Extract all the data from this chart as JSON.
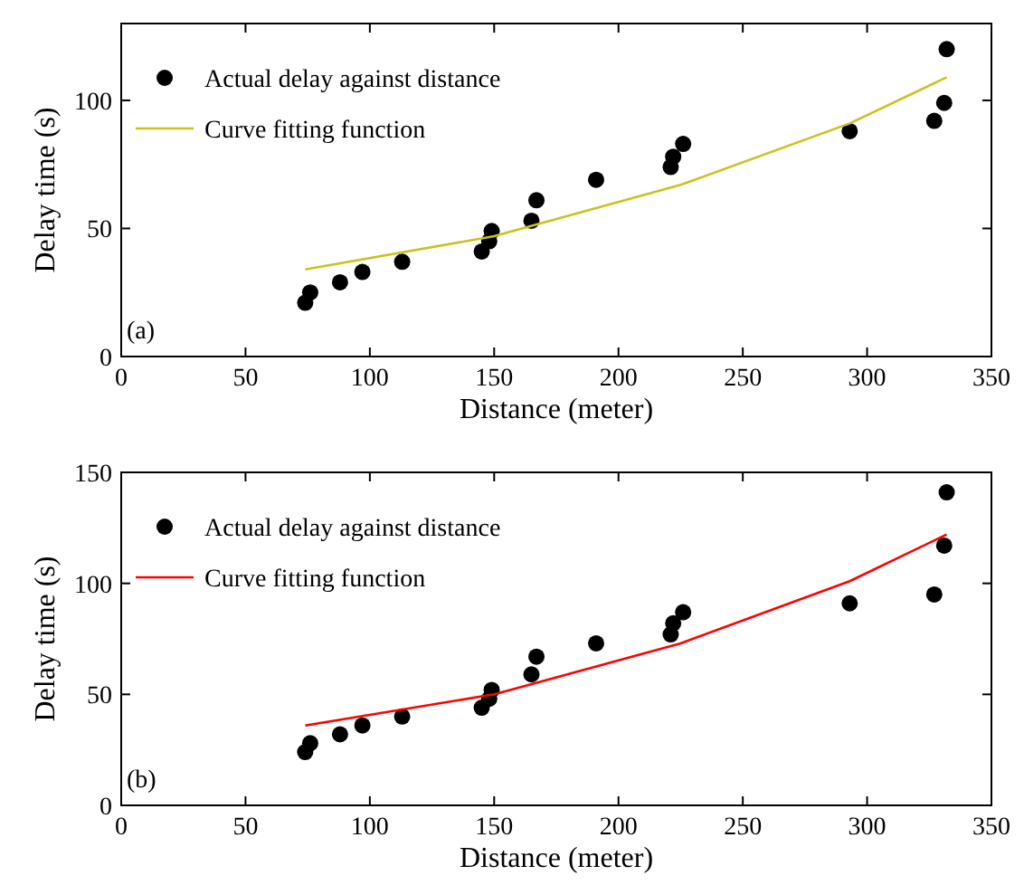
{
  "chart_data": [
    {
      "type": "scatter",
      "xlabel": "Distance (meter)",
      "ylabel": "Delay time (s)",
      "annotations": [
        "(a)"
      ],
      "xlim": [
        0,
        350
      ],
      "xticks": [
        0,
        50,
        100,
        150,
        200,
        250,
        300,
        350
      ],
      "ylim": [
        0,
        130
      ],
      "yticks": [
        0,
        50,
        100
      ],
      "legend": "top left",
      "series": [
        {
          "name": "Actual delay against distance",
          "marker": "circle",
          "color": "#000000",
          "x": [
            74,
            76,
            88,
            97,
            113,
            145,
            148,
            149,
            165,
            167,
            191,
            221,
            222,
            226,
            293,
            327,
            331,
            332
          ],
          "values": [
            21,
            25,
            29,
            33,
            37,
            41,
            45,
            49,
            53,
            61,
            69,
            74,
            78,
            83,
            88,
            92,
            99,
            120
          ]
        },
        {
          "name": "Curve fitting function",
          "type": "line",
          "color": "#c8c31e",
          "x": [
            74,
            150,
            225,
            293,
            332
          ],
          "values": [
            34,
            47,
            67,
            91,
            109
          ]
        }
      ]
    },
    {
      "type": "scatter",
      "xlabel": "Distance (meter)",
      "ylabel": "Delay time (s)",
      "annotations": [
        "(b)"
      ],
      "xlim": [
        0,
        350
      ],
      "xticks": [
        0,
        50,
        100,
        150,
        200,
        250,
        300,
        350
      ],
      "ylim": [
        0,
        150
      ],
      "yticks": [
        0,
        50,
        100,
        150
      ],
      "legend": "top left",
      "series": [
        {
          "name": "Actual delay against distance",
          "marker": "circle",
          "color": "#000000",
          "x": [
            74,
            76,
            88,
            97,
            113,
            145,
            148,
            149,
            165,
            167,
            191,
            221,
            222,
            226,
            293,
            327,
            331,
            332
          ],
          "values": [
            24,
            28,
            32,
            36,
            40,
            44,
            48,
            52,
            59,
            67,
            73,
            77,
            82,
            87,
            91,
            95,
            117,
            141
          ]
        },
        {
          "name": "Curve fitting function",
          "type": "line",
          "color": "#ff0000",
          "x": [
            74,
            150,
            225,
            293,
            332
          ],
          "values": [
            36,
            50,
            73,
            101,
            122
          ]
        }
      ]
    }
  ]
}
